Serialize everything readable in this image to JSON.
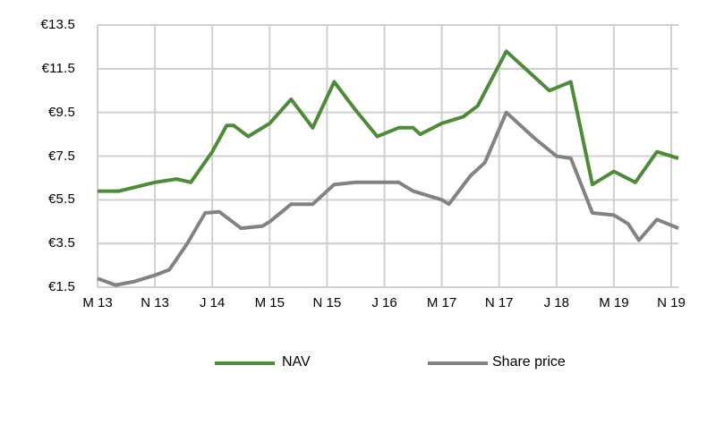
{
  "chart_data": {
    "type": "line",
    "title": "",
    "xlabel": "",
    "ylabel": "",
    "grid": true,
    "legend_position": "bottom-center",
    "x_tick_labels": [
      "M 13",
      "N 13",
      "J 14",
      "M 15",
      "N 15",
      "J 16",
      "M 17",
      "N 17",
      "J 18",
      "M 19",
      "N 19"
    ],
    "x_tick_month_index": [
      0,
      8,
      16,
      24,
      32,
      40,
      48,
      56,
      64,
      72,
      80
    ],
    "y_tick_labels": [
      "€13.5",
      "€11.5",
      "€9.5",
      "€7.5",
      "€5.5",
      "€3.5",
      "€1.5"
    ],
    "y_tick_values": [
      13.5,
      11.5,
      9.5,
      7.5,
      5.5,
      3.5,
      1.5
    ],
    "ylim": [
      1.5,
      13.5
    ],
    "xlim_month_index": [
      0,
      81
    ],
    "series": [
      {
        "name": "NAV",
        "color": "#4f8a3a",
        "points": [
          [
            0,
            5.9
          ],
          [
            3,
            5.9
          ],
          [
            8,
            6.3
          ],
          [
            11,
            6.45
          ],
          [
            13,
            6.3
          ],
          [
            16,
            7.7
          ],
          [
            18,
            8.9
          ],
          [
            19,
            8.9
          ],
          [
            21,
            8.4
          ],
          [
            24,
            9.0
          ],
          [
            27,
            10.1
          ],
          [
            30,
            8.8
          ],
          [
            33,
            10.9
          ],
          [
            36,
            9.6
          ],
          [
            39,
            8.4
          ],
          [
            42,
            8.8
          ],
          [
            44,
            8.8
          ],
          [
            45,
            8.5
          ],
          [
            48,
            9.0
          ],
          [
            51,
            9.3
          ],
          [
            53,
            9.8
          ],
          [
            57,
            12.3
          ],
          [
            61,
            11.1
          ],
          [
            63,
            10.5
          ],
          [
            66,
            10.9
          ],
          [
            69,
            6.2
          ],
          [
            72,
            6.8
          ],
          [
            75,
            6.3
          ],
          [
            78,
            7.7
          ],
          [
            81,
            7.4
          ]
        ]
      },
      {
        "name": "Share price",
        "color": "#828282",
        "points": [
          [
            0,
            1.9
          ],
          [
            2.5,
            1.6
          ],
          [
            5,
            1.75
          ],
          [
            8,
            2.05
          ],
          [
            10,
            2.3
          ],
          [
            12.5,
            3.5
          ],
          [
            15,
            4.9
          ],
          [
            17,
            4.95
          ],
          [
            20,
            4.2
          ],
          [
            23,
            4.3
          ],
          [
            24,
            4.5
          ],
          [
            27,
            5.3
          ],
          [
            30,
            5.3
          ],
          [
            33,
            6.2
          ],
          [
            36,
            6.3
          ],
          [
            39,
            6.3
          ],
          [
            42,
            6.3
          ],
          [
            44,
            5.9
          ],
          [
            48,
            5.5
          ],
          [
            49,
            5.3
          ],
          [
            52,
            6.6
          ],
          [
            54,
            7.2
          ],
          [
            57,
            9.5
          ],
          [
            61,
            8.3
          ],
          [
            64,
            7.5
          ],
          [
            66,
            7.4
          ],
          [
            69,
            4.9
          ],
          [
            72,
            4.8
          ],
          [
            74,
            4.4
          ],
          [
            75.5,
            3.65
          ],
          [
            78,
            4.6
          ],
          [
            81,
            4.2
          ]
        ]
      }
    ],
    "gridline_color": "#cfcfcf",
    "text_color": "#000000"
  },
  "legend": {
    "nav_label": "NAV",
    "share_price_label": "Share price"
  }
}
